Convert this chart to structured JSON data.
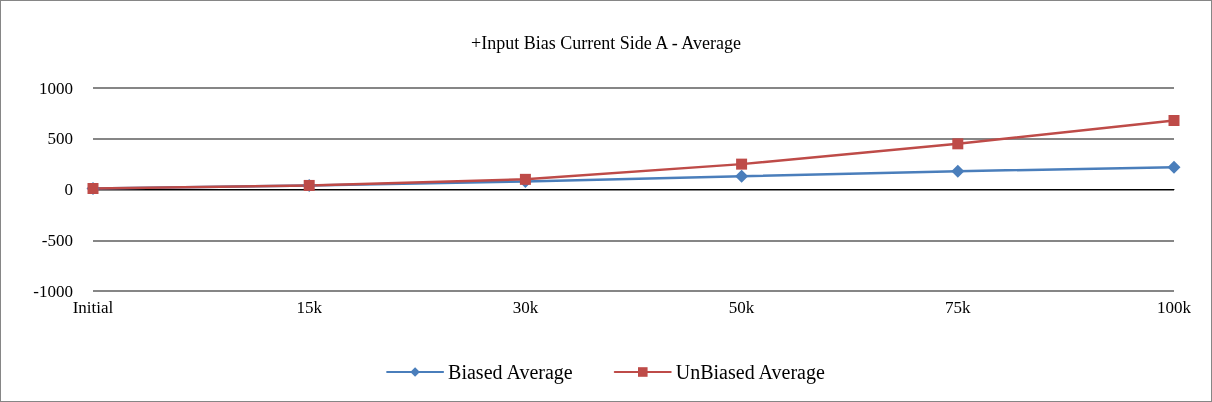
{
  "chart_data": {
    "type": "line",
    "title": "+Input Bias Current Side A - Average",
    "categories": [
      "Initial",
      "15k",
      "30k",
      "50k",
      "75k",
      "100k"
    ],
    "series": [
      {
        "name": "Biased Average",
        "color": "#4a7ebb",
        "marker": "diamond",
        "values": [
          10,
          40,
          80,
          130,
          180,
          220
        ]
      },
      {
        "name": "UnBiased Average",
        "color": "#be4b48",
        "marker": "square",
        "values": [
          10,
          40,
          100,
          250,
          450,
          680
        ]
      }
    ],
    "ylim": [
      -1000,
      1000
    ],
    "yticks": [
      -1000,
      -500,
      0,
      500,
      1000
    ],
    "grid": "y",
    "legend": "bottom",
    "line_style": "solid"
  }
}
